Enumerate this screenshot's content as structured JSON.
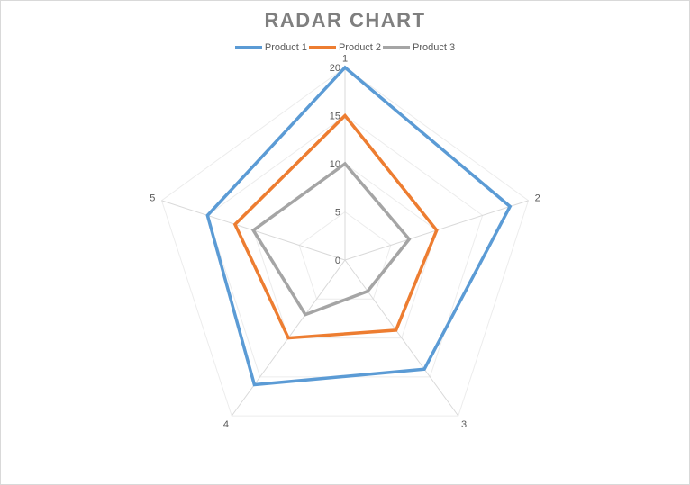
{
  "chart_data": {
    "type": "radar",
    "title": "RADAR CHART",
    "categories": [
      "1",
      "2",
      "3",
      "4",
      "5"
    ],
    "series": [
      {
        "name": "Product 1",
        "values": [
          20,
          18,
          14,
          16,
          15
        ],
        "color": "#5b9bd5"
      },
      {
        "name": "Product 2",
        "values": [
          15,
          10,
          9,
          10,
          12
        ],
        "color": "#ed7d31"
      },
      {
        "name": "Product 3",
        "values": [
          10,
          7,
          4,
          7,
          10
        ],
        "color": "#a5a5a5"
      }
    ],
    "radial_ticks": [
      "0",
      "5",
      "10",
      "15",
      "20"
    ],
    "rlim": [
      0,
      20
    ],
    "grid": true,
    "legend_position": "top"
  }
}
